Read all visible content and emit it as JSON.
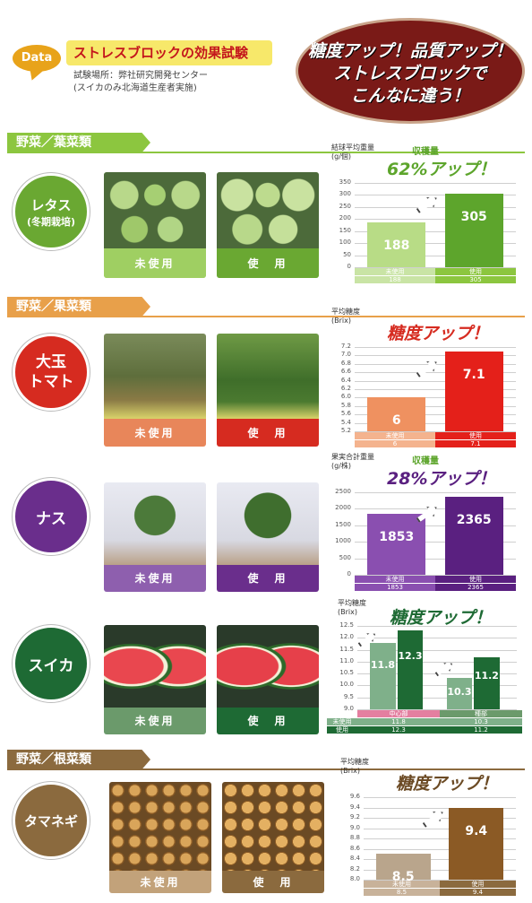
{
  "header": {
    "badge": "Data",
    "title": "ストレスブロックの効果試験",
    "location": "試験場所：弊社研究開発センター",
    "note": "(スイカのみ北海道生産者実施)",
    "slogan_line1": "糖度アップ！品質アップ！",
    "slogan_line2": "ストレスブロックで",
    "slogan_line3": "こんなに違う！",
    "slogan_small": "アップ"
  },
  "colors": {
    "leafy": "#8cc63f",
    "fruit": "#e8a04a",
    "root": "#8b6a3e",
    "lettuce_circle": "#6aa832",
    "tomato_circle": "#d62b20",
    "eggplant_circle": "#6a2e8c",
    "watermelon_circle": "#1e6a34",
    "onion_circle": "#8b6a3e"
  },
  "categories": {
    "leafy": "野菜／葉菜類",
    "fruit": "野菜／果菜類",
    "root": "野菜／根菜類"
  },
  "labels": {
    "unused": "未使用",
    "used": "使　用"
  },
  "crops": {
    "lettuce": {
      "name": "レタス",
      "sub": "(冬期栽培)"
    },
    "tomato": {
      "name1": "大玉",
      "name2": "トマト"
    },
    "eggplant": {
      "name": "ナス"
    },
    "watermelon": {
      "name": "スイカ"
    },
    "onion": {
      "name": "タマネギ"
    }
  },
  "chart_data": [
    {
      "type": "bar",
      "title": "結球平均重量",
      "unit": "(g/個)",
      "annotation_label": "収穫量",
      "annotation": "62%アップ！",
      "categories": [
        "未使用",
        "使用"
      ],
      "values": [
        188,
        305
      ],
      "ylim": [
        0,
        350
      ],
      "ticks": [
        "350",
        "300",
        "250",
        "200",
        "150",
        "100",
        "50",
        "0"
      ]
    },
    {
      "type": "bar",
      "title": "平均糖度",
      "unit": "(Brix)",
      "annotation": "糖度アップ！",
      "categories": [
        "未使用",
        "使用"
      ],
      "values": [
        6.0,
        7.1
      ],
      "ylim": [
        5.2,
        7.2
      ],
      "ticks": [
        "7.2",
        "7.0",
        "6.8",
        "6.6",
        "6.4",
        "6.2",
        "6.0",
        "5.8",
        "5.6",
        "5.4",
        "5.2"
      ]
    },
    {
      "type": "bar",
      "title": "果実合計重量",
      "unit": "(g/株)",
      "annotation_label": "収穫量",
      "annotation": "28%アップ！",
      "categories": [
        "未使用",
        "使用"
      ],
      "values": [
        1853,
        2365
      ],
      "ylim": [
        0,
        2500
      ],
      "ticks": [
        "2500",
        "2000",
        "1500",
        "1000",
        "500",
        "0"
      ]
    },
    {
      "type": "bar",
      "title": "平均糖度",
      "unit": "(Brix)",
      "annotation": "糖度アップ！",
      "categories": [
        "中心部",
        "種部"
      ],
      "series": [
        {
          "name": "未使用",
          "values": [
            11.8,
            10.3
          ]
        },
        {
          "name": "使用",
          "values": [
            12.3,
            11.2
          ]
        }
      ],
      "ylim": [
        9.0,
        12.5
      ],
      "ticks": [
        "12.5",
        "12.0",
        "11.5",
        "11.0",
        "10.5",
        "10.0",
        "9.5",
        "9.0"
      ]
    },
    {
      "type": "bar",
      "title": "平均糖度",
      "unit": "(Brix)",
      "annotation": "糖度アップ！",
      "categories": [
        "未使用",
        "使用"
      ],
      "values": [
        8.5,
        9.4
      ],
      "ylim": [
        8.0,
        9.6
      ],
      "ticks": [
        "9.6",
        "9.4",
        "9.2",
        "9.0",
        "8.8",
        "8.6",
        "8.4",
        "8.2",
        "8.0"
      ]
    }
  ]
}
